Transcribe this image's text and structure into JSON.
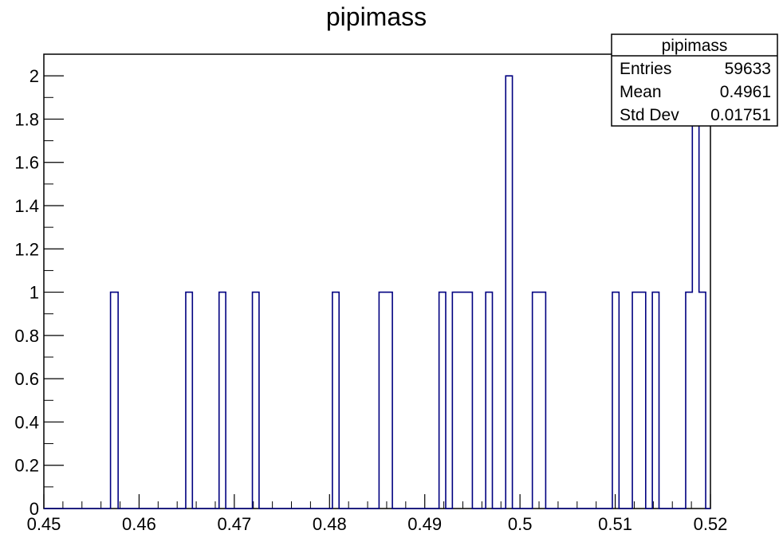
{
  "chart_data": {
    "type": "histogram",
    "title": "pipimass",
    "xlabel": "",
    "ylabel": "",
    "xlim": [
      0.45,
      0.52
    ],
    "ylim": [
      0,
      2.1
    ],
    "x_ticks": [
      "0.45",
      "0.46",
      "0.47",
      "0.48",
      "0.49",
      "0.5",
      "0.51",
      "0.52"
    ],
    "y_ticks": [
      "0",
      "0.2",
      "0.4",
      "0.6",
      "0.8",
      "1",
      "1.2",
      "1.4",
      "1.6",
      "1.8",
      "2"
    ],
    "grid": false,
    "line_color": "#000080",
    "bins": [
      {
        "x0": 0.457,
        "x1": 0.4578,
        "count": 1
      },
      {
        "x0": 0.4649,
        "x1": 0.4656,
        "count": 1
      },
      {
        "x0": 0.4684,
        "x1": 0.4691,
        "count": 1
      },
      {
        "x0": 0.4719,
        "x1": 0.4726,
        "count": 1
      },
      {
        "x0": 0.4803,
        "x1": 0.481,
        "count": 1
      },
      {
        "x0": 0.4852,
        "x1": 0.4866,
        "count": 1
      },
      {
        "x0": 0.4915,
        "x1": 0.4922,
        "count": 1
      },
      {
        "x0": 0.4929,
        "x1": 0.495,
        "count": 1
      },
      {
        "x0": 0.4964,
        "x1": 0.4971,
        "count": 1
      },
      {
        "x0": 0.4985,
        "x1": 0.4992,
        "count": 2
      },
      {
        "x0": 0.5013,
        "x1": 0.5027,
        "count": 1
      },
      {
        "x0": 0.5097,
        "x1": 0.5104,
        "count": 1
      },
      {
        "x0": 0.5118,
        "x1": 0.5132,
        "count": 1
      },
      {
        "x0": 0.5139,
        "x1": 0.5146,
        "count": 1
      },
      {
        "x0": 0.5174,
        "x1": 0.5181,
        "count": 1
      },
      {
        "x0": 0.5181,
        "x1": 0.5188,
        "count": 2
      },
      {
        "x0": 0.5188,
        "x1": 0.5195,
        "count": 1
      }
    ],
    "stats_box": {
      "title": "pipimass",
      "placement": "top-right",
      "rows": [
        {
          "label": "Entries",
          "value": "59633"
        },
        {
          "label": "Mean",
          "value": "0.4961"
        },
        {
          "label": "Std Dev",
          "value": "0.01751"
        }
      ]
    }
  }
}
